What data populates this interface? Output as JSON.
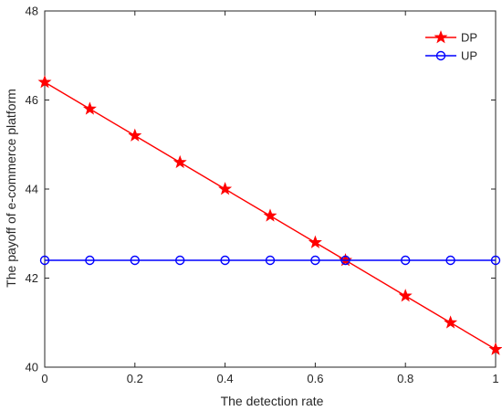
{
  "chart_data": {
    "type": "line",
    "xlabel": "The detection rate",
    "ylabel": "The payoff of e-commerce platform",
    "xlim": [
      0,
      1
    ],
    "ylim": [
      40,
      48
    ],
    "xticks": [
      0,
      0.2,
      0.4,
      0.6,
      0.8,
      1
    ],
    "yticks": [
      40,
      42,
      44,
      46,
      48
    ],
    "xtick_labels": [
      "0",
      "0.2",
      "0.4",
      "0.6",
      "0.8",
      "1"
    ],
    "ytick_labels": [
      "40",
      "42",
      "44",
      "46",
      "48"
    ],
    "grid": false,
    "legend_position": "top-right",
    "series": [
      {
        "name": "DP",
        "color": "#ff0000",
        "marker": "star",
        "x": [
          0,
          0.1,
          0.2,
          0.3,
          0.4,
          0.5,
          0.6,
          0.667,
          0.8,
          0.9,
          1
        ],
        "y": [
          46.4,
          45.8,
          45.2,
          44.6,
          44.0,
          43.4,
          42.8,
          42.4,
          41.6,
          41.0,
          40.4
        ]
      },
      {
        "name": "UP",
        "color": "#0000ff",
        "marker": "circle",
        "x": [
          0,
          0.1,
          0.2,
          0.3,
          0.4,
          0.5,
          0.6,
          0.667,
          0.8,
          0.9,
          1
        ],
        "y": [
          42.4,
          42.4,
          42.4,
          42.4,
          42.4,
          42.4,
          42.4,
          42.4,
          42.4,
          42.4,
          42.4
        ]
      }
    ]
  }
}
